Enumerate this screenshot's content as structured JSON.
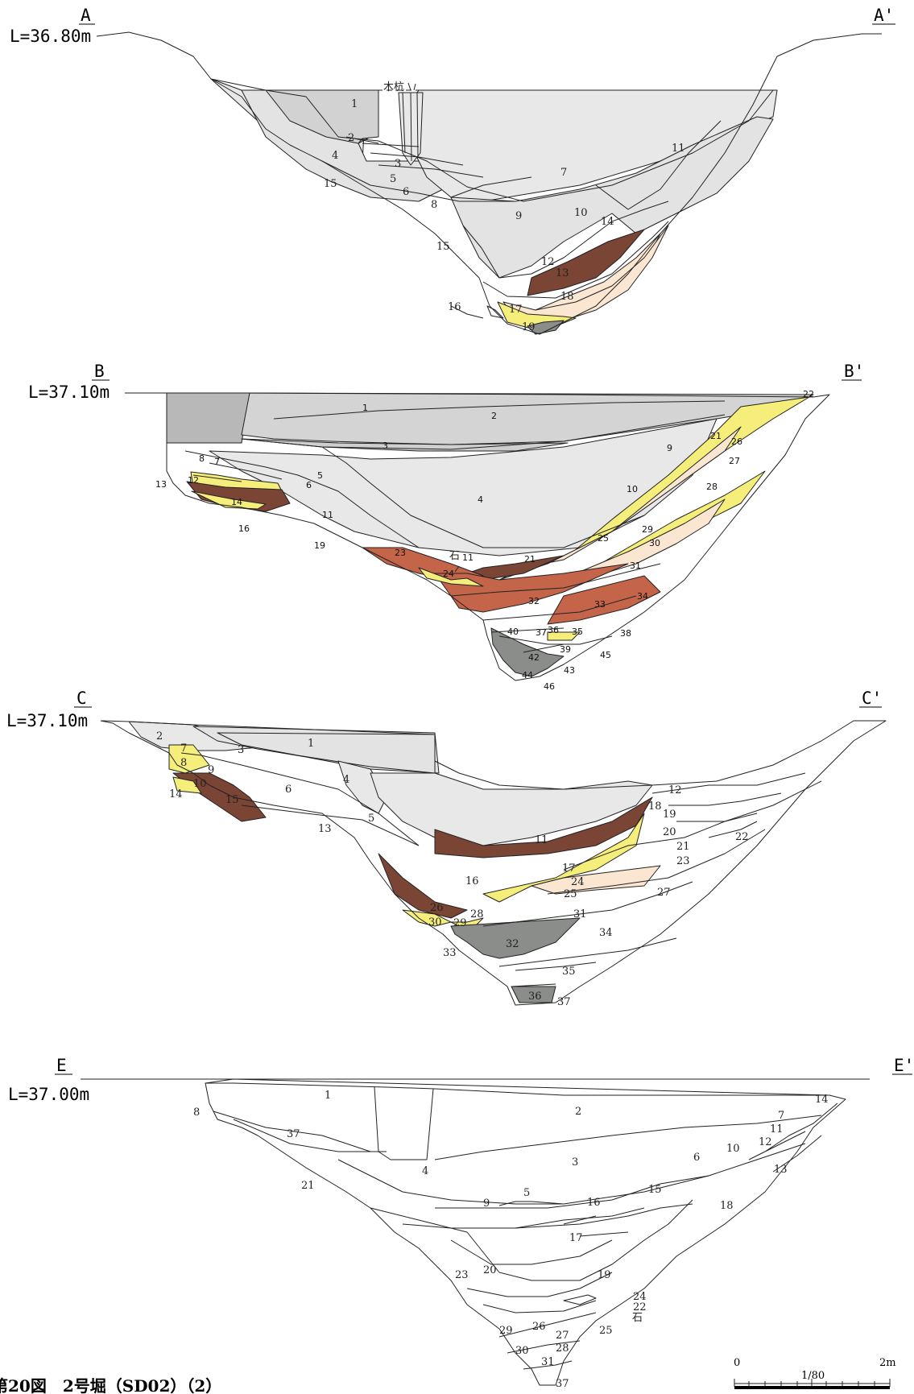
{
  "sections": [
    {
      "start": "A",
      "end": "A'",
      "elevation": "L=36.80m",
      "labels": [
        "1",
        "2",
        "3",
        "4",
        "5",
        "6",
        "7",
        "8",
        "9",
        "10",
        "11",
        "12",
        "13",
        "14",
        "15",
        "15",
        "16",
        "17",
        "18",
        "19"
      ],
      "notes": [
        "木杭"
      ]
    },
    {
      "start": "B",
      "end": "B'",
      "elevation": "L=37.10m",
      "labels": [
        "1",
        "2",
        "3",
        "4",
        "5",
        "6",
        "7",
        "8",
        "9",
        "10",
        "11",
        "11",
        "12",
        "13",
        "14",
        "16",
        "19",
        "21",
        "21",
        "22",
        "23",
        "24",
        "25",
        "26",
        "27",
        "28",
        "29",
        "30",
        "31",
        "32",
        "33",
        "34",
        "35",
        "36",
        "37",
        "38",
        "39",
        "40",
        "42",
        "43",
        "44",
        "45",
        "46"
      ],
      "notes": [
        "石"
      ]
    },
    {
      "start": "C",
      "end": "C'",
      "elevation": "L=37.10m",
      "labels": [
        "1",
        "2",
        "3",
        "4",
        "5",
        "6",
        "7",
        "8",
        "9",
        "10",
        "11",
        "12",
        "13",
        "14",
        "15",
        "16",
        "17",
        "18",
        "19",
        "20",
        "21",
        "22",
        "23",
        "24",
        "25",
        "26",
        "27",
        "28",
        "29",
        "30",
        "31",
        "32",
        "33",
        "34",
        "35",
        "36",
        "37"
      ],
      "notes": []
    },
    {
      "start": "E",
      "end": "E'",
      "elevation": "L=37.00m",
      "labels": [
        "1",
        "2",
        "3",
        "4",
        "5",
        "6",
        "7",
        "8",
        "9",
        "10",
        "11",
        "12",
        "13",
        "14",
        "15",
        "16",
        "17",
        "18",
        "19",
        "20",
        "21",
        "22",
        "23",
        "24",
        "25",
        "26",
        "27",
        "28",
        "29",
        "30",
        "31",
        "37",
        "37"
      ],
      "notes": [
        "石"
      ]
    }
  ],
  "scale": {
    "zero": "0",
    "ratio": "1/80",
    "max": "2m"
  },
  "caption": "第20図　2号堀（SD02）（2）",
  "colors": {
    "gray_dark": "#b8b8b8",
    "gray_mid": "#d4d4d4",
    "gray_light": "#e8e8e8",
    "yellow": "#f5ee7a",
    "brown": "#7a4535",
    "peach": "#fbe6d2",
    "rust": "#c4654a",
    "slate": "#8a8d8a",
    "red": "#b3261e"
  }
}
